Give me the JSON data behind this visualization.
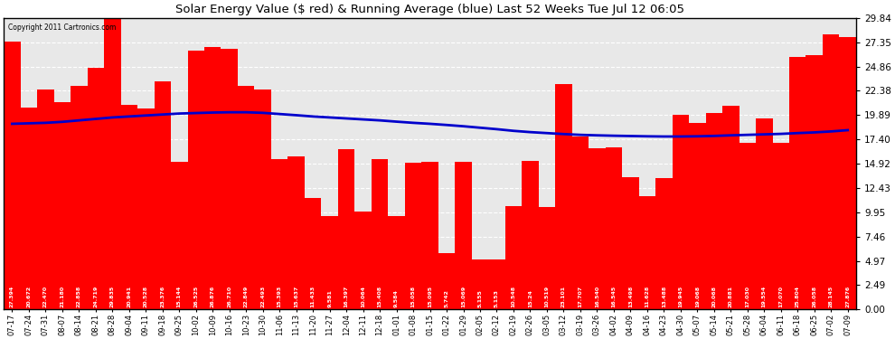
{
  "title": "Solar Energy Value ($ red) & Running Average (blue) Last 52 Weeks Tue Jul 12 06:05",
  "copyright": "Copyright 2011 Cartronics.com",
  "bar_color": "#ff0000",
  "avg_line_color": "#0000cc",
  "background_color": "#ffffff",
  "plot_bg_color": "#e8e8e8",
  "grid_color": "#ffffff",
  "ylim": [
    0.0,
    29.84
  ],
  "yticks": [
    0.0,
    2.49,
    4.97,
    7.46,
    9.95,
    12.43,
    14.92,
    17.4,
    19.89,
    22.38,
    24.86,
    27.35,
    29.84
  ],
  "labels": [
    "07-17",
    "07-24",
    "07-31",
    "08-07",
    "08-14",
    "08-21",
    "08-28",
    "09-04",
    "09-11",
    "09-18",
    "09-25",
    "10-02",
    "10-09",
    "10-16",
    "10-23",
    "10-30",
    "11-06",
    "11-13",
    "11-20",
    "11-27",
    "12-04",
    "12-11",
    "12-18",
    "01-01",
    "01-08",
    "01-15",
    "01-22",
    "01-29",
    "02-05",
    "02-12",
    "02-19",
    "02-26",
    "03-05",
    "03-12",
    "03-19",
    "03-26",
    "04-02",
    "04-09",
    "04-16",
    "04-23",
    "04-30",
    "05-07",
    "05-14",
    "05-21",
    "05-28",
    "06-04",
    "06-11",
    "06-18",
    "06-25",
    "07-02",
    "07-09"
  ],
  "bar_labels": [
    "27.394",
    "20.672",
    "22.470",
    "21.180",
    "22.858",
    "24.719",
    "29.835",
    "20.941",
    "20.528",
    "23.376",
    "15.144",
    "26.525",
    "26.876",
    "26.710",
    "22.849",
    "22.493",
    "15.393",
    "15.637",
    "11.433",
    "9.581",
    "16.397",
    "10.064",
    "15.408",
    "9.584",
    "15.058",
    "15.095",
    "5.742",
    "15.069",
    "5.155",
    "5.153",
    "10.548",
    "15.24",
    "10.519",
    "23.101",
    "17.707",
    "16.540",
    "16.545",
    "13.498",
    "11.628",
    "13.488",
    "19.945",
    "19.068",
    "20.068",
    "20.881",
    "17.030",
    "19.554",
    "17.070",
    "25.804",
    "26.058",
    "28.145",
    "27.876"
  ],
  "values": [
    27.394,
    20.672,
    22.47,
    21.18,
    22.858,
    24.719,
    29.835,
    20.941,
    20.528,
    23.376,
    15.144,
    26.525,
    26.876,
    26.71,
    22.849,
    22.493,
    15.393,
    15.637,
    11.433,
    9.581,
    16.397,
    10.064,
    15.408,
    9.584,
    15.058,
    15.095,
    5.742,
    15.069,
    5.155,
    5.153,
    10.548,
    15.24,
    10.519,
    23.101,
    17.707,
    16.54,
    16.545,
    13.498,
    11.628,
    13.488,
    19.945,
    19.068,
    20.068,
    20.881,
    17.03,
    19.554,
    17.07,
    25.804,
    26.058,
    28.145,
    27.876
  ],
  "avg_values": [
    19.0,
    19.05,
    19.1,
    19.2,
    19.35,
    19.5,
    19.65,
    19.75,
    19.85,
    19.95,
    20.05,
    20.1,
    20.15,
    20.18,
    20.18,
    20.12,
    20.0,
    19.88,
    19.75,
    19.65,
    19.55,
    19.45,
    19.35,
    19.22,
    19.1,
    19.0,
    18.88,
    18.75,
    18.6,
    18.45,
    18.28,
    18.15,
    18.05,
    17.95,
    17.87,
    17.82,
    17.78,
    17.75,
    17.72,
    17.7,
    17.7,
    17.72,
    17.76,
    17.82,
    17.87,
    17.92,
    17.97,
    18.05,
    18.12,
    18.22,
    18.35
  ]
}
